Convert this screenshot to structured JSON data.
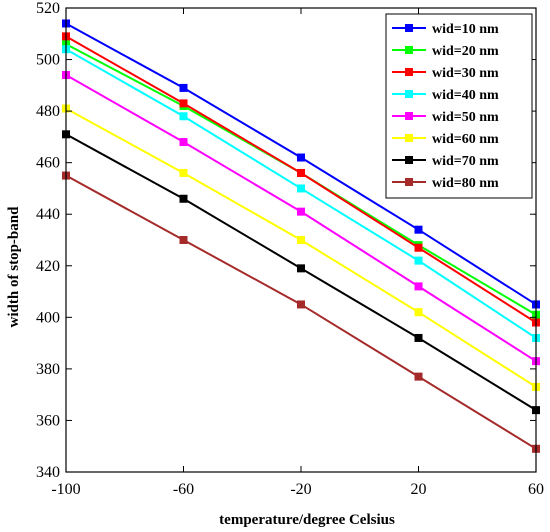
{
  "chart_data": {
    "type": "line",
    "xlabel": "temperature/degree Celsius",
    "ylabel": "width of stop-band",
    "x": [
      -100,
      -60,
      -20,
      20,
      60
    ],
    "xlim": [
      -100,
      60
    ],
    "ylim": [
      340,
      520
    ],
    "xticks": [
      -100,
      -60,
      -20,
      20,
      60
    ],
    "yticks": [
      340,
      360,
      380,
      400,
      420,
      440,
      460,
      480,
      500,
      520
    ],
    "grid": false,
    "legend_position": "top-right",
    "marker": "square",
    "series": [
      {
        "name": "wid=10 nm",
        "color": "#0000ff",
        "values": [
          514,
          489,
          462,
          434,
          405
        ]
      },
      {
        "name": "wid=20 nm",
        "color": "#00ff00",
        "values": [
          506,
          482,
          456,
          428,
          401
        ]
      },
      {
        "name": "wid=30 nm",
        "color": "#ff0000",
        "values": [
          509,
          483,
          456,
          427,
          398
        ]
      },
      {
        "name": "wid=40 nm",
        "color": "#00ffff",
        "values": [
          504,
          478,
          450,
          422,
          392
        ]
      },
      {
        "name": "wid=50 nm",
        "color": "#ff00ff",
        "values": [
          494,
          468,
          441,
          412,
          383
        ]
      },
      {
        "name": "wid=60 nm",
        "color": "#ffff00",
        "values": [
          481,
          456,
          430,
          402,
          373
        ]
      },
      {
        "name": "wid=70 nm",
        "color": "#000000",
        "values": [
          471,
          446,
          419,
          392,
          364
        ]
      },
      {
        "name": "wid=80 nm",
        "color": "#a52a2a",
        "values": [
          455,
          430,
          405,
          377,
          349
        ]
      }
    ]
  }
}
